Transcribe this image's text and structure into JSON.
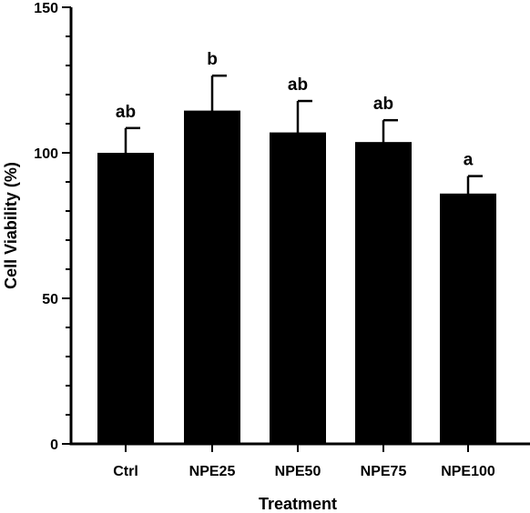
{
  "chart_data": {
    "type": "bar",
    "title": "",
    "xlabel": "Treatment",
    "ylabel": "Cell Viability (%)",
    "ylim": [
      0,
      150
    ],
    "yticks": [
      0,
      50,
      100,
      150
    ],
    "categories": [
      "Ctrl",
      "NPE25",
      "NPE50",
      "NPE75",
      "NPE100"
    ],
    "values": [
      100,
      114.5,
      107,
      103.7,
      86
    ],
    "error": [
      8.5,
      12,
      10.8,
      7.5,
      6
    ],
    "significance": [
      "ab",
      "b",
      "ab",
      "ab",
      "a"
    ],
    "grid": false,
    "bar_color": "#000000"
  }
}
